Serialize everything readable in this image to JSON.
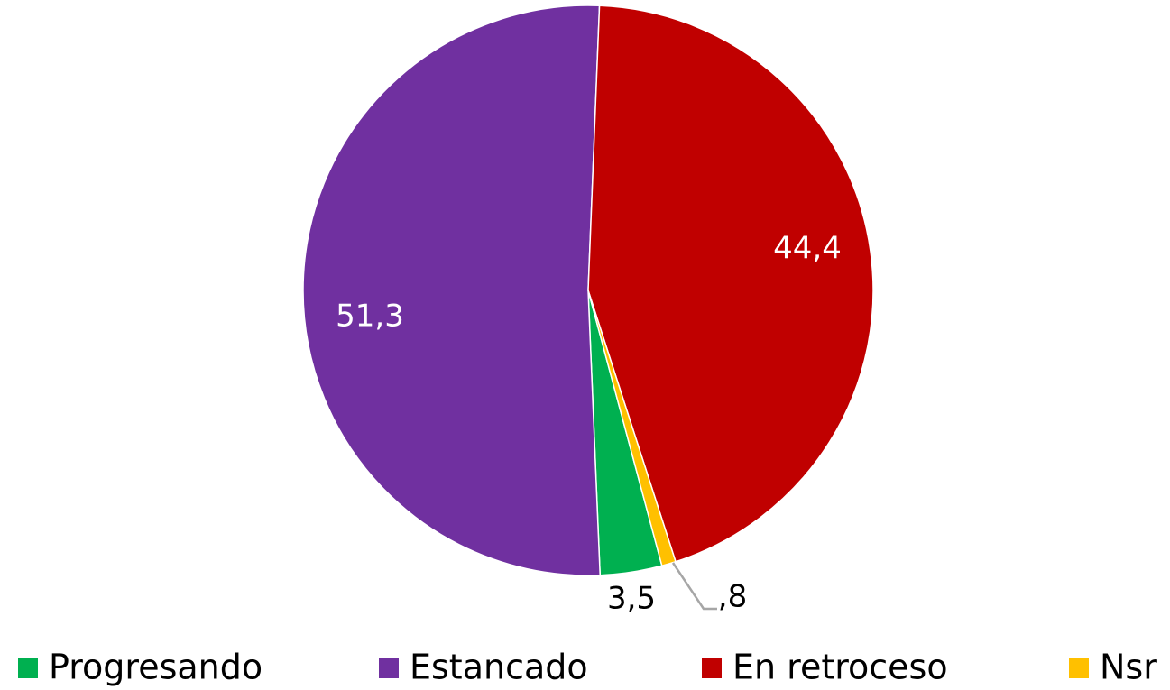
{
  "chart_data": {
    "type": "pie",
    "categories": [
      "Progresando",
      "Estancado",
      "En retroceso",
      "Nsr"
    ],
    "values": [
      3.5,
      51.3,
      44.4,
      0.8
    ],
    "value_labels": [
      "3,5",
      "51,3",
      "44,4",
      ",8"
    ],
    "colors": [
      "#00b050",
      "#7030a0",
      "#c00000",
      "#ffc000"
    ],
    "legend": "bottom"
  }
}
